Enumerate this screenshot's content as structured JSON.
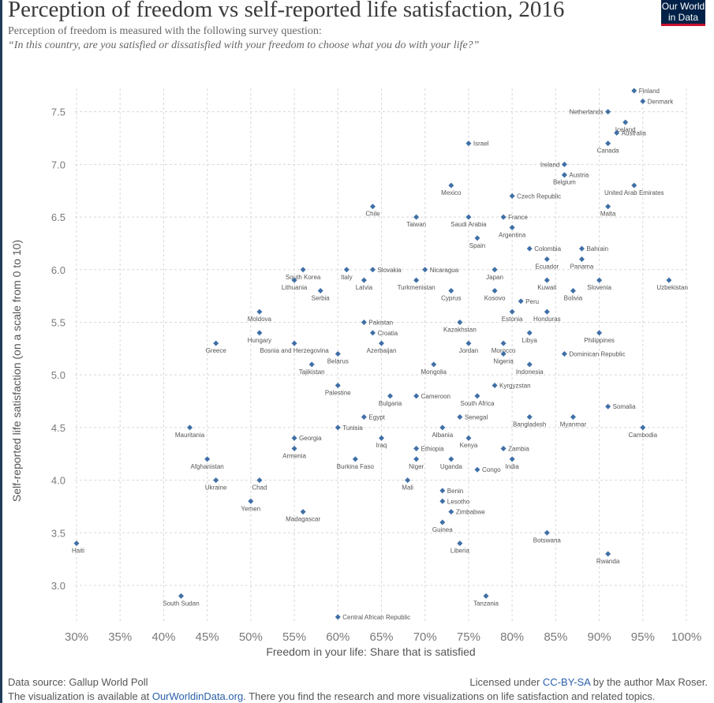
{
  "header": {
    "title": "Perception of freedom vs self-reported life satisfaction, 2016",
    "subtitle_line1": "Perception of freedom is measured with the following survey question:",
    "subtitle_line2": "“In this country, are you satisfied or dissatisfied with your freedom to choose what you do with your life?”",
    "logo_line1": "Our World",
    "logo_line2": "in Data"
  },
  "footer": {
    "source": "Data source: Gallup World Poll",
    "license_prefix": "Licensed under ",
    "license_link": "CC-BY-SA",
    "license_suffix": " by the author Max Roser.",
    "visualization_prefix": "The visualization is available at ",
    "visualization_link": "OurWorldinData.org",
    "visualization_suffix": ". There you find the research and more visualizations on life satisfaction and related topics."
  },
  "colors": {
    "marker": "#3f6fa6",
    "brand": "#002147",
    "accent": "#c8102e"
  },
  "chart_data": {
    "type": "scatter",
    "title": "Perception of freedom vs self-reported life satisfaction, 2016",
    "xlabel": "Freedom in your life: Share that is satisfied",
    "ylabel": "Self-reported life satisfaction (on a scale from 0 to 10)",
    "xlim": [
      30,
      100
    ],
    "ylim": [
      2.7,
      7.7
    ],
    "x_ticks": [
      "30%",
      "35%",
      "40%",
      "45%",
      "50%",
      "55%",
      "60%",
      "65%",
      "70%",
      "75%",
      "80%",
      "85%",
      "90%",
      "95%",
      "100%"
    ],
    "y_ticks": [
      "3.0",
      "3.5",
      "4.0",
      "4.5",
      "5.0",
      "5.5",
      "6.0",
      "6.5",
      "7.0",
      "7.5"
    ],
    "grid": true,
    "points": [
      {
        "label": "Finland",
        "x": 94,
        "y": 7.7
      },
      {
        "label": "Denmark",
        "x": 95,
        "y": 7.6
      },
      {
        "label": "Netherlands",
        "x": 91,
        "y": 7.5
      },
      {
        "label": "Iceland",
        "x": 93,
        "y": 7.4
      },
      {
        "label": "Australia",
        "x": 92,
        "y": 7.3
      },
      {
        "label": "Canada",
        "x": 91,
        "y": 7.2
      },
      {
        "label": "Israel",
        "x": 75,
        "y": 7.2
      },
      {
        "label": "Ireland",
        "x": 86,
        "y": 7.0
      },
      {
        "label": "Austria",
        "x": 86,
        "y": 6.9
      },
      {
        "label": "Belgium",
        "x": 86,
        "y": 6.9
      },
      {
        "label": "Mexico",
        "x": 73,
        "y": 6.8
      },
      {
        "label": "United Arab Emirates",
        "x": 94,
        "y": 6.8
      },
      {
        "label": "Czech Republic",
        "x": 80,
        "y": 6.7
      },
      {
        "label": "Malta",
        "x": 91,
        "y": 6.6
      },
      {
        "label": "Chile",
        "x": 64,
        "y": 6.6
      },
      {
        "label": "Taiwan",
        "x": 69,
        "y": 6.5
      },
      {
        "label": "Saudi Arabia",
        "x": 75,
        "y": 6.5
      },
      {
        "label": "France",
        "x": 79,
        "y": 6.5
      },
      {
        "label": "Argentina",
        "x": 80,
        "y": 6.4
      },
      {
        "label": "Spain",
        "x": 76,
        "y": 6.3
      },
      {
        "label": "Colombia",
        "x": 82,
        "y": 6.2
      },
      {
        "label": "Bahrain",
        "x": 88,
        "y": 6.2
      },
      {
        "label": "Panama",
        "x": 88,
        "y": 6.1
      },
      {
        "label": "Ecuador",
        "x": 84,
        "y": 6.1
      },
      {
        "label": "South Korea",
        "x": 56,
        "y": 6.0
      },
      {
        "label": "Italy",
        "x": 61,
        "y": 6.0
      },
      {
        "label": "Slovakia",
        "x": 64,
        "y": 6.0
      },
      {
        "label": "Nicaragua",
        "x": 70,
        "y": 6.0
      },
      {
        "label": "Japan",
        "x": 78,
        "y": 6.0
      },
      {
        "label": "Lithuania",
        "x": 55,
        "y": 5.9
      },
      {
        "label": "Latvia",
        "x": 63,
        "y": 5.9
      },
      {
        "label": "Turkmenistan",
        "x": 69,
        "y": 5.9
      },
      {
        "label": "Kuwait",
        "x": 84,
        "y": 5.9
      },
      {
        "label": "Slovenia",
        "x": 90,
        "y": 5.9
      },
      {
        "label": "Uzbekistan",
        "x": 98,
        "y": 5.9
      },
      {
        "label": "Serbia",
        "x": 58,
        "y": 5.8
      },
      {
        "label": "Cyprus",
        "x": 73,
        "y": 5.8
      },
      {
        "label": "Kosovo",
        "x": 78,
        "y": 5.8
      },
      {
        "label": "Bolivia",
        "x": 87,
        "y": 5.8
      },
      {
        "label": "Peru",
        "x": 81,
        "y": 5.7
      },
      {
        "label": "Estonia",
        "x": 80,
        "y": 5.6
      },
      {
        "label": "Honduras",
        "x": 84,
        "y": 5.6
      },
      {
        "label": "Moldova",
        "x": 51,
        "y": 5.6
      },
      {
        "label": "Pakistan",
        "x": 63,
        "y": 5.5
      },
      {
        "label": "Kazakhstan",
        "x": 74,
        "y": 5.5
      },
      {
        "label": "Croatia",
        "x": 64,
        "y": 5.4
      },
      {
        "label": "Libya",
        "x": 82,
        "y": 5.4
      },
      {
        "label": "Philippines",
        "x": 90,
        "y": 5.4
      },
      {
        "label": "Hungary",
        "x": 51,
        "y": 5.4
      },
      {
        "label": "Greece",
        "x": 46,
        "y": 5.3
      },
      {
        "label": "Azerbaijan",
        "x": 65,
        "y": 5.3
      },
      {
        "label": "Jordan",
        "x": 75,
        "y": 5.3
      },
      {
        "label": "Morocco",
        "x": 79,
        "y": 5.3
      },
      {
        "label": "Bosnia and Herzegovina",
        "x": 55,
        "y": 5.3
      },
      {
        "label": "Dominican Republic",
        "x": 86,
        "y": 5.2
      },
      {
        "label": "Belarus",
        "x": 60,
        "y": 5.2
      },
      {
        "label": "Nigeria",
        "x": 79,
        "y": 5.2
      },
      {
        "label": "Tajikistan",
        "x": 57,
        "y": 5.1
      },
      {
        "label": "Mongolia",
        "x": 71,
        "y": 5.1
      },
      {
        "label": "Indonesia",
        "x": 82,
        "y": 5.1
      },
      {
        "label": "Kyrgyzstan",
        "x": 78,
        "y": 4.9
      },
      {
        "label": "Palestine",
        "x": 60,
        "y": 4.9
      },
      {
        "label": "Bulgaria",
        "x": 66,
        "y": 4.8
      },
      {
        "label": "Cameroon",
        "x": 69,
        "y": 4.8
      },
      {
        "label": "South Africa",
        "x": 76,
        "y": 4.8
      },
      {
        "label": "Somalia",
        "x": 91,
        "y": 4.7
      },
      {
        "label": "Egypt",
        "x": 63,
        "y": 4.6
      },
      {
        "label": "Senegal",
        "x": 74,
        "y": 4.6
      },
      {
        "label": "Bangladesh",
        "x": 82,
        "y": 4.6
      },
      {
        "label": "Myanmar",
        "x": 87,
        "y": 4.6
      },
      {
        "label": "Mauritania",
        "x": 43,
        "y": 4.5
      },
      {
        "label": "Tunisia",
        "x": 60,
        "y": 4.5
      },
      {
        "label": "Albania",
        "x": 72,
        "y": 4.5
      },
      {
        "label": "Cambodia",
        "x": 95,
        "y": 4.5
      },
      {
        "label": "Georgia",
        "x": 55,
        "y": 4.4
      },
      {
        "label": "Iraq",
        "x": 65,
        "y": 4.4
      },
      {
        "label": "Kenya",
        "x": 75,
        "y": 4.4
      },
      {
        "label": "Ethiopia",
        "x": 69,
        "y": 4.3
      },
      {
        "label": "Zambia",
        "x": 79,
        "y": 4.3
      },
      {
        "label": "Armenia",
        "x": 55,
        "y": 4.3
      },
      {
        "label": "Afghanistan",
        "x": 45,
        "y": 4.2
      },
      {
        "label": "Burkina Faso",
        "x": 62,
        "y": 4.2
      },
      {
        "label": "Niger",
        "x": 69,
        "y": 4.2
      },
      {
        "label": "Uganda",
        "x": 73,
        "y": 4.2
      },
      {
        "label": "India",
        "x": 80,
        "y": 4.2
      },
      {
        "label": "Congo",
        "x": 76,
        "y": 4.1
      },
      {
        "label": "Ukraine",
        "x": 46,
        "y": 4.0
      },
      {
        "label": "Chad",
        "x": 51,
        "y": 4.0
      },
      {
        "label": "Mali",
        "x": 68,
        "y": 4.0
      },
      {
        "label": "Benin",
        "x": 72,
        "y": 3.9
      },
      {
        "label": "Lesotho",
        "x": 72,
        "y": 3.8
      },
      {
        "label": "Yemen",
        "x": 50,
        "y": 3.8
      },
      {
        "label": "Madagascar",
        "x": 56,
        "y": 3.7
      },
      {
        "label": "Zimbabwe",
        "x": 73,
        "y": 3.7
      },
      {
        "label": "Guinea",
        "x": 72,
        "y": 3.6
      },
      {
        "label": "Botswana",
        "x": 84,
        "y": 3.5
      },
      {
        "label": "Haiti",
        "x": 30,
        "y": 3.4
      },
      {
        "label": "Liberia",
        "x": 74,
        "y": 3.4
      },
      {
        "label": "Rwanda",
        "x": 91,
        "y": 3.3
      },
      {
        "label": "South Sudan",
        "x": 42,
        "y": 2.9
      },
      {
        "label": "Tanzania",
        "x": 77,
        "y": 2.9
      },
      {
        "label": "Central African Republic",
        "x": 60,
        "y": 2.7
      }
    ]
  }
}
